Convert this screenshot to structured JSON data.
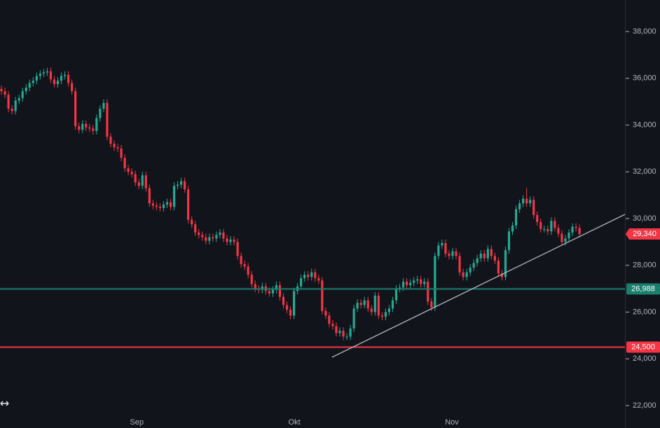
{
  "chart_data": {
    "type": "candlestick",
    "open": [
      35550,
      35450,
      35300,
      34700,
      34600,
      35050,
      35150,
      35450,
      35600,
      35800,
      35900,
      36100,
      36200,
      36250,
      36300,
      35950,
      35750,
      35900,
      36100,
      36150,
      35800,
      35450,
      33950,
      33800,
      34050,
      33900,
      33850,
      33750,
      34300,
      34700,
      34950,
      33500,
      33200,
      33050,
      33000,
      32600,
      32150,
      32000,
      31900,
      31550,
      31400,
      31850,
      31300,
      30650,
      30550,
      30500,
      30450,
      30600,
      30700,
      30500,
      31400,
      31450,
      31600,
      31250,
      29950,
      29750,
      29400,
      29300,
      29200,
      29050,
      29200,
      29150,
      29300,
      29400,
      29150,
      29000,
      29100,
      29000,
      28400,
      28050,
      27950,
      27600,
      27200,
      27000,
      26950,
      27100,
      26900,
      26800,
      26950,
      27150,
      26650,
      26300,
      26100,
      25850,
      26900,
      27100,
      27450,
      27600,
      27500,
      27700,
      27450,
      27350,
      26050,
      25850,
      25500,
      25400,
      25100,
      25200,
      24950,
      24950,
      25300,
      26150,
      26400,
      26300,
      26500,
      26150,
      26000,
      26700,
      25850,
      25800,
      26000,
      26150,
      26500,
      27000,
      27050,
      27300,
      27150,
      27250,
      27350,
      27400,
      27200,
      27300,
      26450,
      26200,
      28400,
      28850,
      28950,
      28500,
      28400,
      28600,
      28400,
      27700,
      27500,
      27700,
      27900,
      28100,
      28300,
      28500,
      28300,
      28700,
      28400,
      28200,
      27650,
      27500,
      28650,
      29450,
      29700,
      30400,
      30650,
      30850,
      30650,
      30800,
      30150,
      29850,
      29550,
      29550,
      29450,
      29900,
      29600,
      29350,
      29000,
      29150,
      29400,
      29650,
      29600
    ],
    "high": [
      35700,
      35600,
      35450,
      34850,
      35200,
      35300,
      35600,
      35750,
      35950,
      36050,
      36250,
      36350,
      36400,
      36450,
      36450,
      36100,
      36050,
      36250,
      36300,
      36300,
      35950,
      35600,
      34100,
      34200,
      34200,
      34050,
      34000,
      34450,
      34850,
      35100,
      35100,
      33650,
      33350,
      33200,
      33150,
      32750,
      32300,
      32150,
      32050,
      31700,
      32000,
      32000,
      31450,
      30800,
      30700,
      30650,
      30750,
      30850,
      30850,
      31550,
      31600,
      31750,
      31750,
      31400,
      30100,
      29900,
      29550,
      29450,
      29350,
      29350,
      29350,
      29450,
      29550,
      29550,
      29300,
      29250,
      29250,
      29150,
      28550,
      28200,
      28100,
      27750,
      27350,
      27150,
      27250,
      27250,
      27050,
      27100,
      27300,
      27300,
      26800,
      26450,
      26250,
      27050,
      27250,
      27600,
      27750,
      27750,
      27850,
      27850,
      27600,
      27500,
      26200,
      26000,
      25650,
      25550,
      25350,
      25350,
      25100,
      25450,
      26300,
      26550,
      26550,
      26650,
      26650,
      26300,
      26850,
      26850,
      26000,
      26150,
      26300,
      26650,
      27150,
      27200,
      27450,
      27450,
      27400,
      27500,
      27550,
      27550,
      27450,
      27450,
      26600,
      28550,
      29000,
      29100,
      29100,
      28650,
      28750,
      28750,
      28550,
      27850,
      27850,
      28050,
      28250,
      28450,
      28650,
      28650,
      28850,
      28850,
      28550,
      28350,
      27800,
      28800,
      29600,
      29850,
      30550,
      30800,
      31000,
      31300,
      30950,
      30950,
      30300,
      30000,
      29700,
      29700,
      30050,
      30050,
      29750,
      29500,
      29300,
      29550,
      29800,
      29800,
      29750
    ],
    "low": [
      35300,
      35150,
      34550,
      34450,
      34450,
      34900,
      35000,
      35300,
      35450,
      35650,
      35750,
      35950,
      36050,
      36100,
      35800,
      35600,
      35600,
      35750,
      35950,
      35650,
      35300,
      33800,
      33650,
      33650,
      33750,
      33700,
      33600,
      33600,
      34150,
      34550,
      33350,
      33050,
      32900,
      32850,
      32450,
      32000,
      31850,
      31750,
      31400,
      31250,
      31250,
      31150,
      30500,
      30400,
      30350,
      30300,
      30300,
      30450,
      30350,
      30350,
      31250,
      31300,
      31100,
      29800,
      29600,
      29250,
      29150,
      29050,
      28900,
      28900,
      29000,
      29000,
      29150,
      29000,
      28850,
      28850,
      28850,
      28250,
      27900,
      27800,
      27450,
      27050,
      26850,
      26800,
      26800,
      26750,
      26650,
      26650,
      26800,
      26500,
      26150,
      25950,
      25700,
      25700,
      26750,
      26950,
      27300,
      27350,
      27350,
      27300,
      27200,
      25900,
      25700,
      25350,
      25250,
      24950,
      24950,
      24800,
      24800,
      24800,
      25150,
      26000,
      26150,
      26150,
      26000,
      25850,
      25850,
      25700,
      25650,
      25650,
      25850,
      26000,
      26350,
      26850,
      26900,
      27000,
      27000,
      27100,
      27200,
      27050,
      27050,
      26300,
      26050,
      26050,
      28250,
      28700,
      28350,
      28250,
      28250,
      28250,
      27550,
      27350,
      27350,
      27550,
      27750,
      27950,
      28150,
      28150,
      28150,
      28250,
      28050,
      27500,
      27350,
      27350,
      28500,
      29300,
      29550,
      30250,
      30500,
      30500,
      30500,
      30000,
      29700,
      29400,
      29400,
      29300,
      29300,
      29450,
      29200,
      28850,
      28850,
      29000,
      29250,
      29450,
      29190
    ],
    "close": [
      35450,
      35300,
      34700,
      34600,
      35050,
      35150,
      35450,
      35600,
      35800,
      35900,
      36100,
      36200,
      36250,
      36300,
      35950,
      35750,
      35900,
      36100,
      36150,
      35800,
      35450,
      33950,
      33800,
      34050,
      33900,
      33850,
      33750,
      34300,
      34700,
      34950,
      33500,
      33200,
      33050,
      33000,
      32600,
      32150,
      32000,
      31900,
      31550,
      31400,
      31850,
      31300,
      30650,
      30550,
      30500,
      30450,
      30600,
      30700,
      30500,
      31400,
      31450,
      31600,
      31250,
      29950,
      29750,
      29400,
      29300,
      29200,
      29050,
      29200,
      29150,
      29300,
      29400,
      29150,
      29000,
      29100,
      29000,
      28400,
      28050,
      27950,
      27600,
      27200,
      27000,
      26950,
      27100,
      26900,
      26800,
      26950,
      27150,
      26650,
      26300,
      26100,
      25850,
      26900,
      27100,
      27450,
      27600,
      27500,
      27700,
      27450,
      27350,
      26050,
      25850,
      25500,
      25400,
      25100,
      25200,
      24950,
      24950,
      25300,
      26150,
      26400,
      26300,
      26500,
      26150,
      26000,
      26700,
      25850,
      25800,
      26000,
      26150,
      26500,
      27000,
      27050,
      27300,
      27150,
      27250,
      27350,
      27400,
      27200,
      27300,
      26450,
      26200,
      28400,
      28850,
      28950,
      28500,
      28400,
      28600,
      28400,
      27700,
      27500,
      27700,
      27900,
      28100,
      28300,
      28500,
      28300,
      28700,
      28400,
      28200,
      27650,
      27500,
      28650,
      29450,
      29700,
      30400,
      30650,
      30850,
      30650,
      30800,
      30150,
      29850,
      29550,
      29550,
      29450,
      29900,
      29600,
      29350,
      29000,
      29150,
      29400,
      29650,
      29600,
      29340
    ],
    "up_color": "#22ab94",
    "down_color": "#f23645",
    "xlim": [
      -0.4,
      176.9
    ],
    "xticks": [
      {
        "value": 38.4,
        "label": "Sep"
      },
      {
        "value": 83.1,
        "label": "Okt"
      },
      {
        "value": 127.8,
        "label": "Nov"
      }
    ],
    "ylim": [
      21040,
      39350
    ],
    "yticks": [
      {
        "value": 22000,
        "label": "22,000"
      },
      {
        "value": 24000,
        "label": "24,000"
      },
      {
        "value": 26000,
        "label": "26,000"
      },
      {
        "value": 28000,
        "label": "28,000"
      },
      {
        "value": 30000,
        "label": "30,000"
      },
      {
        "value": 32000,
        "label": "32,000"
      },
      {
        "value": 34000,
        "label": "34,000"
      },
      {
        "value": 36000,
        "label": "36,000"
      },
      {
        "value": 38000,
        "label": "38,000"
      }
    ],
    "horizontal_lines": [
      {
        "value": 26988,
        "label": "26,988",
        "color": "#1b7f6e"
      },
      {
        "value": 24500,
        "label": "24,500",
        "color": "#f23645"
      }
    ],
    "last_price": {
      "value": 29340,
      "label": "29,340",
      "color": "#f23645"
    },
    "trendline": {
      "x": [
        93.8,
        176.9
      ],
      "y": [
        24067,
        30180
      ],
      "color": "#b2b5be"
    }
  }
}
